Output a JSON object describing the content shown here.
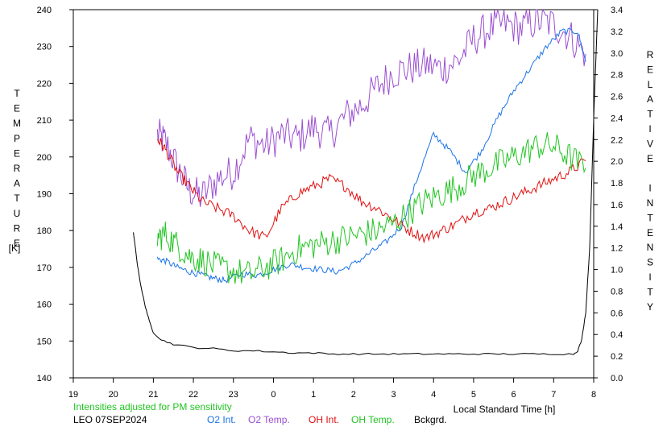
{
  "chart_data": {
    "type": "line",
    "left_axis_label": "TEMPERATURE",
    "left_axis_unit": "[K]",
    "right_axis_label": "RELATIVE INTENSITY",
    "xlabel": "Local Standard Time [h]",
    "note": "Intensities adjusted for PM sensitivity",
    "station_date": "LEO 07SEP2024",
    "x_ticks": [
      "19",
      "20",
      "21",
      "22",
      "23",
      "0",
      "1",
      "2",
      "3",
      "4",
      "5",
      "6",
      "7",
      "8"
    ],
    "y_left_ticks": [
      "140",
      "150",
      "160",
      "170",
      "180",
      "190",
      "200",
      "210",
      "220",
      "230",
      "240"
    ],
    "y_right_ticks": [
      "0.0",
      "0.2",
      "0.4",
      "0.6",
      "0.8",
      "1.0",
      "1.2",
      "1.4",
      "1.6",
      "1.8",
      "2.0",
      "2.2",
      "2.4",
      "2.6",
      "2.8",
      "3.0",
      "3.2",
      "3.4"
    ],
    "xlim": [
      19,
      32
    ],
    "ylim_left": [
      140,
      240
    ],
    "ylim_right": [
      0.0,
      3.4
    ],
    "colors": {
      "o2_int": "#1a73e8",
      "o2_temp": "#9b4fd1",
      "oh_int": "#e01010",
      "oh_temp": "#22c422",
      "bckgrd": "#000000"
    },
    "legend": [
      {
        "label": "O2 Int.",
        "color": "#1a73e8"
      },
      {
        "label": "O2 Temp.",
        "color": "#9b4fd1"
      },
      {
        "label": "OH Int.",
        "color": "#e01010"
      },
      {
        "label": "OH Temp.",
        "color": "#22c422"
      },
      {
        "label": "Bckgrd.",
        "color": "#000000"
      }
    ],
    "series": [
      {
        "name": "O2 Temp.",
        "axis": "left",
        "color": "#9b4fd1",
        "x": [
          21.1,
          21.3,
          21.6,
          21.9,
          22.2,
          22.6,
          23.0,
          23.4,
          23.8,
          24.2,
          24.6,
          25.0,
          25.4,
          25.8,
          26.2,
          26.6,
          27.0,
          27.4,
          27.8,
          28.2,
          28.6,
          29.0,
          29.4,
          29.8,
          30.2,
          30.6,
          31.0,
          31.4,
          31.8
        ],
        "y": [
          206,
          204,
          197,
          191,
          189,
          194,
          196,
          205,
          203,
          206,
          205,
          208,
          206,
          211,
          214,
          219,
          223,
          224,
          225,
          224,
          226,
          232,
          235,
          236,
          235,
          237,
          236,
          233,
          228
        ]
      },
      {
        "name": "O2 Int.",
        "axis": "right",
        "color": "#1a73e8",
        "x": [
          21.1,
          21.3,
          21.6,
          21.9,
          22.2,
          22.5,
          22.8,
          23.2,
          23.6,
          24.0,
          24.4,
          24.8,
          25.2,
          25.6,
          26.0,
          26.4,
          26.8,
          27.2,
          27.6,
          28.0,
          28.4,
          28.8,
          29.2,
          29.6,
          30.0,
          30.4,
          30.8,
          31.2,
          31.6,
          31.8
        ],
        "y": [
          1.1,
          1.08,
          1.02,
          0.98,
          0.95,
          0.92,
          0.9,
          0.96,
          0.95,
          1.0,
          1.05,
          1.02,
          1.0,
          0.98,
          1.05,
          1.15,
          1.25,
          1.4,
          1.85,
          2.25,
          2.1,
          1.9,
          2.1,
          2.4,
          2.65,
          2.85,
          3.05,
          3.2,
          3.2,
          2.92
        ]
      },
      {
        "name": "OH Int.",
        "axis": "left",
        "color": "#e01010",
        "x": [
          21.1,
          21.3,
          21.6,
          21.9,
          22.2,
          22.6,
          23.0,
          23.4,
          23.8,
          24.2,
          24.6,
          25.0,
          25.4,
          25.8,
          26.2,
          26.6,
          27.0,
          27.4,
          27.8,
          28.2,
          28.6,
          29.0,
          29.4,
          29.8,
          30.2,
          30.6,
          31.0,
          31.4,
          31.8
        ],
        "y": [
          205,
          202,
          196,
          192,
          188,
          186,
          184,
          180,
          178,
          186,
          190,
          192,
          194,
          192,
          188,
          186,
          183,
          180,
          178,
          180,
          182,
          185,
          186,
          188,
          190,
          192,
          194,
          196,
          199
        ]
      },
      {
        "name": "OH Temp.",
        "axis": "left",
        "color": "#22c422",
        "x": [
          21.1,
          21.3,
          21.6,
          21.9,
          22.2,
          22.6,
          23.0,
          23.4,
          23.8,
          24.2,
          24.6,
          25.0,
          25.4,
          25.8,
          26.2,
          26.6,
          27.0,
          27.4,
          27.8,
          28.2,
          28.6,
          29.0,
          29.4,
          29.8,
          30.2,
          30.6,
          31.0,
          31.4,
          31.8
        ],
        "y": [
          178,
          179,
          176,
          173,
          172,
          170,
          169,
          168,
          170,
          172,
          175,
          176,
          177,
          178,
          179,
          180,
          182,
          185,
          188,
          190,
          192,
          195,
          197,
          199,
          201,
          203,
          203,
          200,
          197
        ]
      },
      {
        "name": "Bckgrd.",
        "axis": "right",
        "color": "#000000",
        "x": [
          20.5,
          20.6,
          20.7,
          20.8,
          20.9,
          21.0,
          21.2,
          21.5,
          22.0,
          22.5,
          23.0,
          23.5,
          24.0,
          24.5,
          25.0,
          25.5,
          26.0,
          26.5,
          27.0,
          27.5,
          28.0,
          28.5,
          29.0,
          29.5,
          30.0,
          30.5,
          31.0,
          31.5,
          31.6,
          31.7,
          31.8,
          31.9,
          32.0,
          32.1
        ],
        "y": [
          1.35,
          1.05,
          0.82,
          0.66,
          0.52,
          0.42,
          0.35,
          0.31,
          0.28,
          0.27,
          0.25,
          0.25,
          0.24,
          0.23,
          0.23,
          0.22,
          0.22,
          0.22,
          0.22,
          0.22,
          0.22,
          0.22,
          0.22,
          0.22,
          0.22,
          0.22,
          0.22,
          0.22,
          0.25,
          0.35,
          0.6,
          1.2,
          2.4,
          3.4
        ]
      }
    ]
  }
}
